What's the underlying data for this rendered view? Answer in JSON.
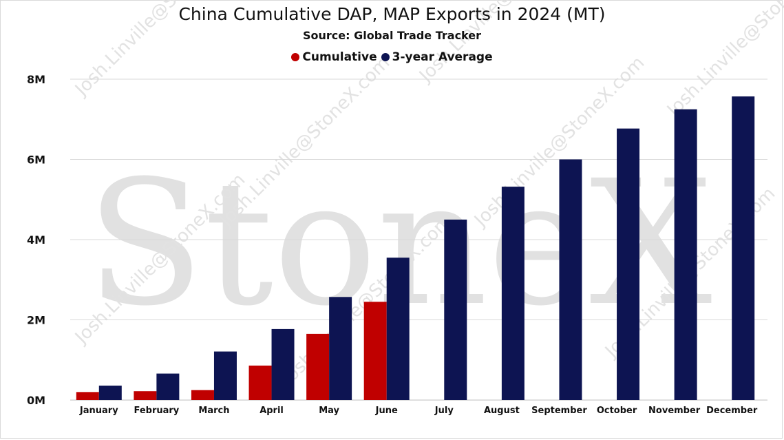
{
  "chart_data": {
    "type": "bar",
    "title": "China Cumulative DAP, MAP Exports in 2024 (MT)",
    "subtitle": "Source: Global Trade Tracker",
    "categories": [
      "January",
      "February",
      "March",
      "April",
      "May",
      "June",
      "July",
      "August",
      "September",
      "October",
      "November",
      "December"
    ],
    "series": [
      {
        "name": "Cumulative",
        "color": "#c00000",
        "values": [
          200000,
          220000,
          250000,
          860000,
          1650000,
          2450000,
          null,
          null,
          null,
          null,
          null,
          null
        ]
      },
      {
        "name": "3-year Average",
        "color": "#0d1452",
        "values": [
          360000,
          660000,
          1210000,
          1770000,
          2570000,
          3550000,
          4500000,
          5320000,
          6000000,
          6770000,
          7250000,
          7570000
        ]
      }
    ],
    "ylim": [
      0,
      8000000
    ],
    "yticks": [
      0,
      2000000,
      4000000,
      6000000,
      8000000
    ],
    "ytick_labels": [
      "0M",
      "2M",
      "4M",
      "6M",
      "8M"
    ],
    "grid": true,
    "legend_position": "top"
  },
  "watermark": {
    "brand": "StoneX",
    "repeated_text": "Josh.Linville@StoneX.com"
  }
}
